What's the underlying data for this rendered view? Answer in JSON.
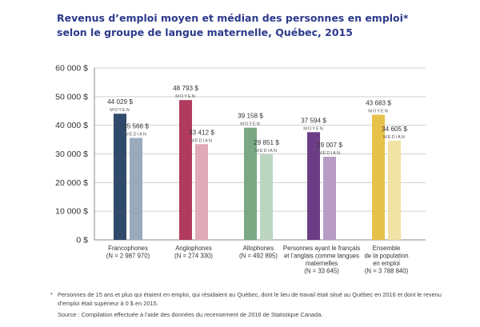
{
  "title_line1": "Revenus d’emploi moyen et médian des personnes en emploi*",
  "title_line2": "selon le groupe de langue maternelle, Québec, 2015",
  "chart_data": {
    "type": "bar",
    "title": "Revenus d’emploi moyen et médian des personnes en emploi* selon le groupe de langue maternelle, Québec, 2015",
    "ylim": [
      0,
      60000
    ],
    "yticks": [
      0,
      10000,
      20000,
      30000,
      40000,
      50000,
      60000
    ],
    "ytick_labels": [
      "0 $",
      "10 000 $",
      "20 000 $",
      "30 000 $",
      "40 000 $",
      "50 000 $",
      "60 000 $"
    ],
    "grid": true,
    "moyen_label": "MOYEN",
    "median_label": "MÉDIAN",
    "groups": [
      {
        "name_lines": [
          "Francophones",
          "(N = 2 987 970)"
        ],
        "moyen": 44029,
        "moyen_label": "44 029 $",
        "median": 35566,
        "median_label": "35 566 $",
        "color_moyen": "#2f4a6b",
        "color_median": "#9aa9bb"
      },
      {
        "name_lines": [
          "Anglophones",
          "(N = 274 330)"
        ],
        "moyen": 48793,
        "moyen_label": "48 793 $",
        "median": 33412,
        "median_label": "33 412 $",
        "color_moyen": "#b23a5e",
        "color_median": "#e2a9b9"
      },
      {
        "name_lines": [
          "Allophones",
          "(N = 492 895)"
        ],
        "moyen": 39158,
        "moyen_label": "39 158 $",
        "median": 29851,
        "median_label": "29 851 $",
        "color_moyen": "#79a883",
        "color_median": "#bcd6c1"
      },
      {
        "name_lines": [
          "Personnes ayant le français",
          "et l’anglais comme langues",
          "maternelles",
          "(N = 33 645)"
        ],
        "moyen": 37594,
        "moyen_label": "37 594 $",
        "median": 29007,
        "median_label": "29 007 $",
        "color_moyen": "#6c3d85",
        "color_median": "#b89bc6"
      },
      {
        "name_lines": [
          "Ensemble",
          "de la population",
          "en emploi",
          "(N = 3 788 840)"
        ],
        "moyen": 43683,
        "moyen_label": "43 683 $",
        "median": 34605,
        "median_label": "34 605 $",
        "color_moyen": "#e6c24a",
        "color_median": "#f1e2a5"
      }
    ]
  },
  "footnote_mark": "*",
  "footnote_text": "Personnes de 15 ans et plus qui étaient en emploi, qui résidaient au Québec, dont le lieu de travail était situé au Québec en 2016 et dont le revenu d’emploi était supérieur à 0 $ en 2015.",
  "source_text": "Source : Compilation effectuée à l’aide des données du recensement de 2016 de Statistique Canada.",
  "colors": {
    "title": "#2c3a8c",
    "grid": "#d0d0d0",
    "axis": "#888888"
  }
}
